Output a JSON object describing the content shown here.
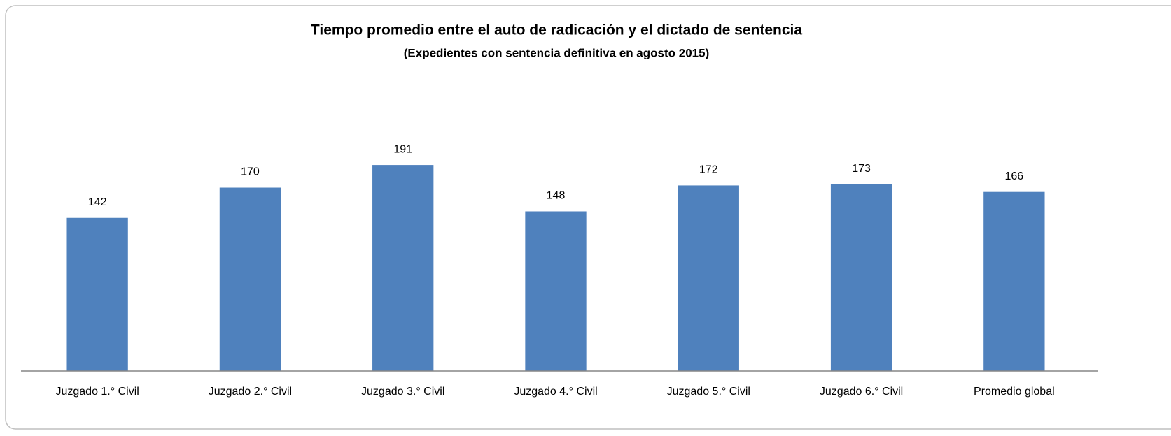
{
  "chart_data": {
    "type": "bar",
    "title": "Tiempo promedio entre el auto de radicación y el dictado de sentencia",
    "subtitle": "(Expedientes con sentencia definitiva en agosto 2015)",
    "categories": [
      "Juzgado 1.° Civil",
      "Juzgado 2.° Civil",
      "Juzgado 3.° Civil",
      "Juzgado 4.° Civil",
      "Juzgado 5.° Civil",
      "Juzgado 6.° Civil",
      "Promedio global"
    ],
    "values": [
      142,
      170,
      191,
      148,
      172,
      173,
      166
    ],
    "color": "#4f81bd",
    "ylim": [
      0,
      250
    ],
    "grid": false
  }
}
